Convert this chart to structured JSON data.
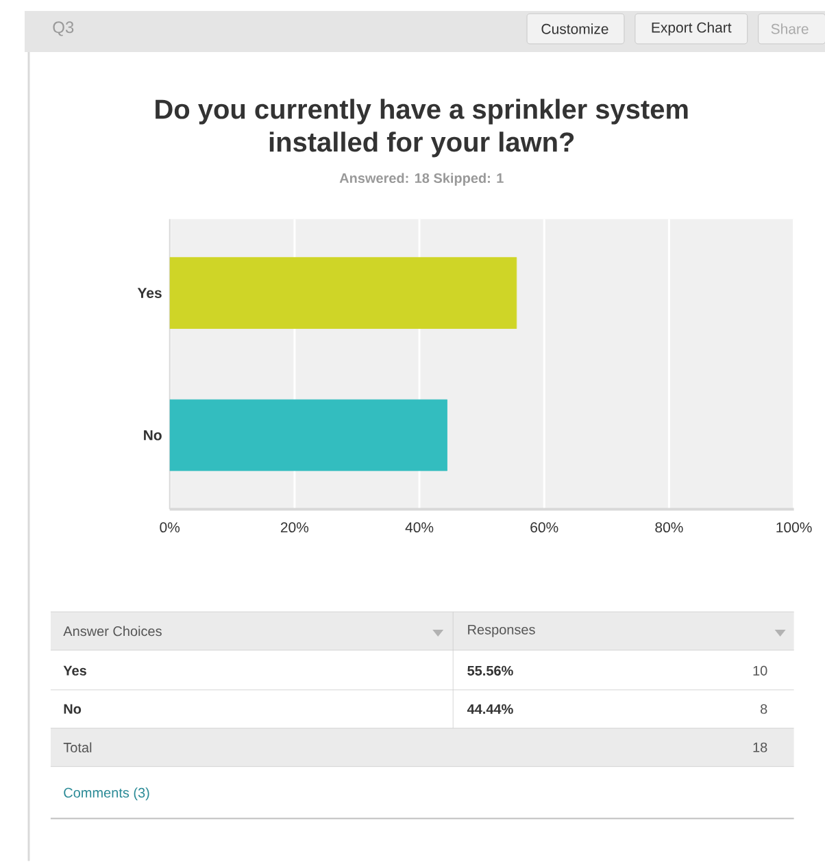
{
  "chart_data": {
    "type": "bar",
    "orientation": "horizontal",
    "title": "Do you currently have a sprinkler system installed for your lawn?",
    "subtitle": "Answered: 18    Skipped: 1",
    "categories": [
      "Yes",
      "No"
    ],
    "values": [
      55.56,
      44.44
    ],
    "colors": [
      "#cfd527",
      "#33bdbf"
    ],
    "xlim": [
      0,
      100
    ],
    "xticks": [
      {
        "value": 0,
        "label": "0%"
      },
      {
        "value": 20,
        "label": "20%"
      },
      {
        "value": 40,
        "label": "40%"
      },
      {
        "value": 60,
        "label": "60%"
      },
      {
        "value": 80,
        "label": "80%"
      },
      {
        "value": 100,
        "label": "100%"
      }
    ],
    "grid": "x",
    "annotations": [
      "Q3",
      "Customize",
      "Export Chart",
      "Share",
      "Answer Choices",
      "Responses",
      "10",
      "8",
      "Total",
      "18",
      "Comments (3)",
      "55.56%",
      "44.44%"
    ]
  }
}
